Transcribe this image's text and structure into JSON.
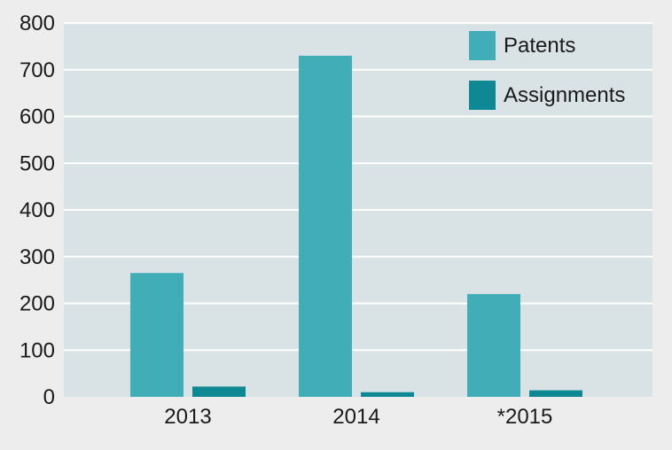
{
  "chart_data": {
    "type": "bar",
    "title": "",
    "xlabel": "",
    "ylabel": "",
    "categories": [
      "2013",
      "2014",
      "*2015"
    ],
    "series": [
      {
        "name": "Patents",
        "color": "#41adb7",
        "values": [
          265,
          730,
          220
        ]
      },
      {
        "name": "Assignments",
        "color": "#0e8893",
        "values": [
          22,
          10,
          14
        ]
      }
    ],
    "ylim": [
      0,
      800
    ],
    "yticks": [
      0,
      100,
      200,
      300,
      400,
      500,
      600,
      700,
      800
    ],
    "grid": true,
    "legend": "top-right"
  },
  "colors": {
    "page_background": "#ededed",
    "plot_background": "#d9e3e5",
    "gridline": "#ffffff"
  }
}
